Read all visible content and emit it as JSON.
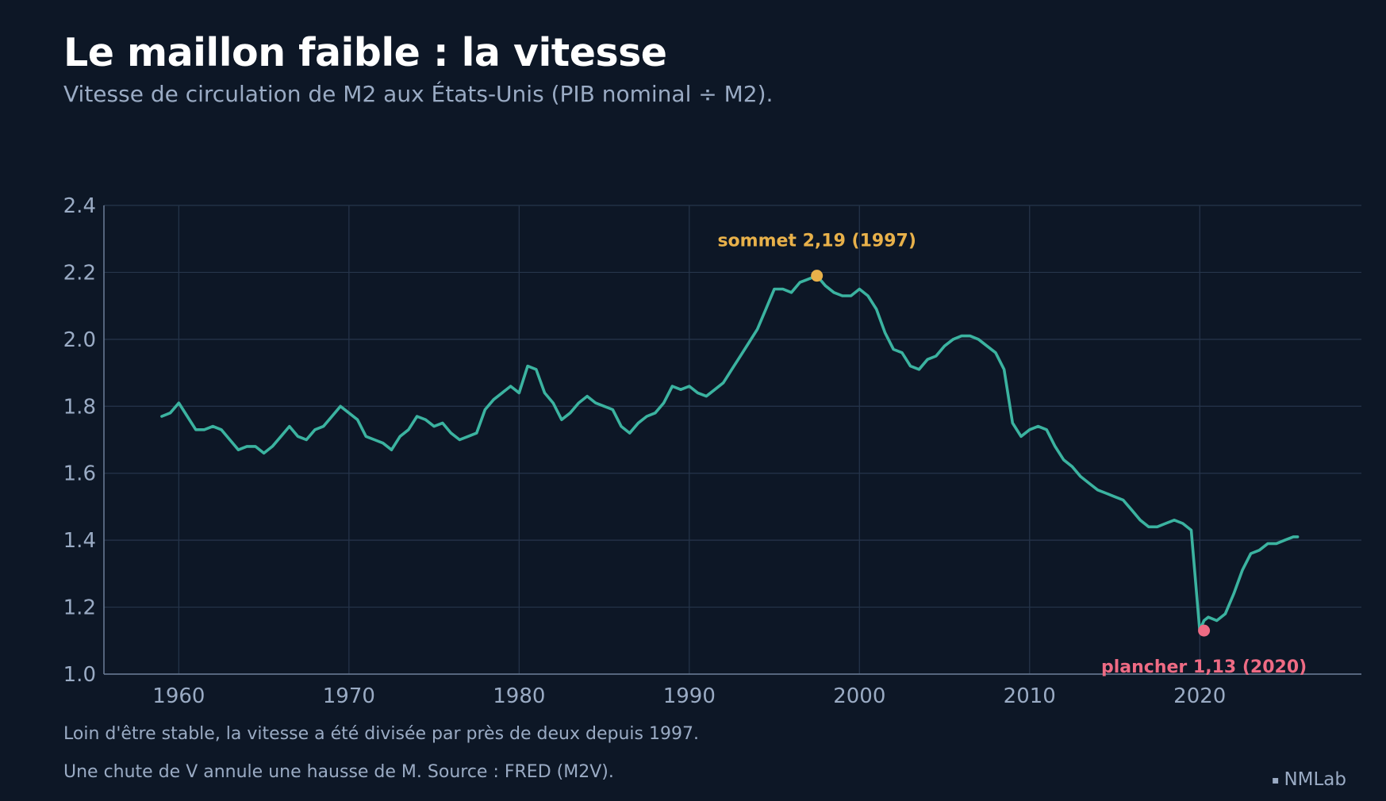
{
  "header": {
    "title": "Le maillon faible : la vitesse",
    "subtitle": "Vitesse de circulation de M2 aux États-Unis (PIB nominal ÷ M2)."
  },
  "footer": {
    "note1": "Loin d'être stable, la vitesse a été divisée par près de deux depuis 1997.",
    "note2": "Une chute de V annule une hausse de M. Source : FRED (M2V).",
    "brand": "NMLab",
    "brand_mark": "▪"
  },
  "colors": {
    "line": "#3bb3a0",
    "peak": "#e8b14a",
    "trough": "#ee6b84",
    "grid": "#26354b",
    "axis": "#6d7f98",
    "tick": "#9aabc4"
  },
  "chart_data": {
    "type": "line",
    "title": "Le maillon faible : la vitesse",
    "subtitle": "Vitesse de circulation de M2 aux États-Unis (PIB nominal ÷ M2).",
    "xlabel": "",
    "ylabel": "",
    "xlim": [
      1955.6,
      2029.5
    ],
    "ylim": [
      1.0,
      2.4
    ],
    "xticks": [
      1960,
      1970,
      1980,
      1990,
      2000,
      2010,
      2020
    ],
    "yticks": [
      1.0,
      1.2,
      1.4,
      1.6,
      1.8,
      2.0,
      2.2,
      2.4
    ],
    "grid": true,
    "series": [
      {
        "x": [
          1959.0,
          1959.5,
          1960.0,
          1960.5,
          1961.0,
          1961.5,
          1962.0,
          1962.5,
          1963.0,
          1963.5,
          1964.0,
          1964.5,
          1965.0,
          1965.5,
          1966.0,
          1966.5,
          1967.0,
          1967.5,
          1968.0,
          1968.5,
          1969.0,
          1969.5,
          1970.0,
          1970.5,
          1971.0,
          1971.5,
          1972.0,
          1972.5,
          1973.0,
          1973.5,
          1974.0,
          1974.5,
          1975.0,
          1975.5,
          1976.0,
          1976.5,
          1977.0,
          1977.5,
          1978.0,
          1978.5,
          1979.0,
          1979.5,
          1980.0,
          1980.5,
          1981.0,
          1981.5,
          1982.0,
          1982.5,
          1983.0,
          1983.5,
          1984.0,
          1984.5,
          1985.0,
          1985.5,
          1986.0,
          1986.5,
          1987.0,
          1987.5,
          1988.0,
          1988.5,
          1989.0,
          1989.5,
          1990.0,
          1990.5,
          1991.0,
          1991.5,
          1992.0,
          1992.5,
          1993.0,
          1993.5,
          1994.0,
          1994.5,
          1995.0,
          1995.5,
          1996.0,
          1996.5,
          1997.0,
          1997.5,
          1998.0,
          1998.5,
          1999.0,
          1999.5,
          2000.0,
          2000.5,
          2001.0,
          2001.5,
          2002.0,
          2002.5,
          2003.0,
          2003.5,
          2004.0,
          2004.5,
          2005.0,
          2005.5,
          2006.0,
          2006.5,
          2007.0,
          2007.5,
          2008.0,
          2008.5,
          2009.0,
          2009.5,
          2010.0,
          2010.5,
          2011.0,
          2011.5,
          2012.0,
          2012.5,
          2013.0,
          2013.5,
          2014.0,
          2014.5,
          2015.0,
          2015.5,
          2016.0,
          2016.5,
          2017.0,
          2017.5,
          2018.0,
          2018.5,
          2019.0,
          2019.5,
          2020.0,
          2020.25,
          2020.5,
          2021.0,
          2021.5,
          2022.0,
          2022.5,
          2023.0,
          2023.5,
          2024.0,
          2024.5,
          2025.0,
          2025.5,
          2025.75
        ],
        "values": [
          1.77,
          1.78,
          1.81,
          1.77,
          1.73,
          1.73,
          1.74,
          1.73,
          1.7,
          1.67,
          1.68,
          1.68,
          1.66,
          1.68,
          1.71,
          1.74,
          1.71,
          1.7,
          1.73,
          1.74,
          1.77,
          1.8,
          1.78,
          1.76,
          1.71,
          1.7,
          1.69,
          1.67,
          1.71,
          1.73,
          1.77,
          1.76,
          1.74,
          1.75,
          1.72,
          1.7,
          1.71,
          1.72,
          1.79,
          1.82,
          1.84,
          1.86,
          1.84,
          1.92,
          1.91,
          1.84,
          1.81,
          1.76,
          1.78,
          1.81,
          1.83,
          1.81,
          1.8,
          1.79,
          1.74,
          1.72,
          1.75,
          1.77,
          1.78,
          1.81,
          1.86,
          1.85,
          1.86,
          1.84,
          1.83,
          1.85,
          1.87,
          1.91,
          1.95,
          1.99,
          2.03,
          2.09,
          2.15,
          2.15,
          2.14,
          2.17,
          2.18,
          2.19,
          2.16,
          2.14,
          2.13,
          2.13,
          2.15,
          2.13,
          2.09,
          2.02,
          1.97,
          1.96,
          1.92,
          1.91,
          1.94,
          1.95,
          1.98,
          2.0,
          2.01,
          2.01,
          2.0,
          1.98,
          1.96,
          1.91,
          1.75,
          1.71,
          1.73,
          1.74,
          1.73,
          1.68,
          1.64,
          1.62,
          1.59,
          1.57,
          1.55,
          1.54,
          1.53,
          1.52,
          1.49,
          1.46,
          1.44,
          1.44,
          1.45,
          1.46,
          1.45,
          1.43,
          1.13,
          1.16,
          1.17,
          1.16,
          1.18,
          1.24,
          1.31,
          1.36,
          1.37,
          1.39,
          1.39,
          1.4,
          1.41,
          1.41
        ]
      }
    ],
    "annotations": [
      {
        "label": "sommet 2,19 (1997)",
        "x": 1997.5,
        "y": 2.19
      },
      {
        "label": "plancher 1,13 (2020)",
        "x": 2020.25,
        "y": 1.13
      }
    ]
  }
}
